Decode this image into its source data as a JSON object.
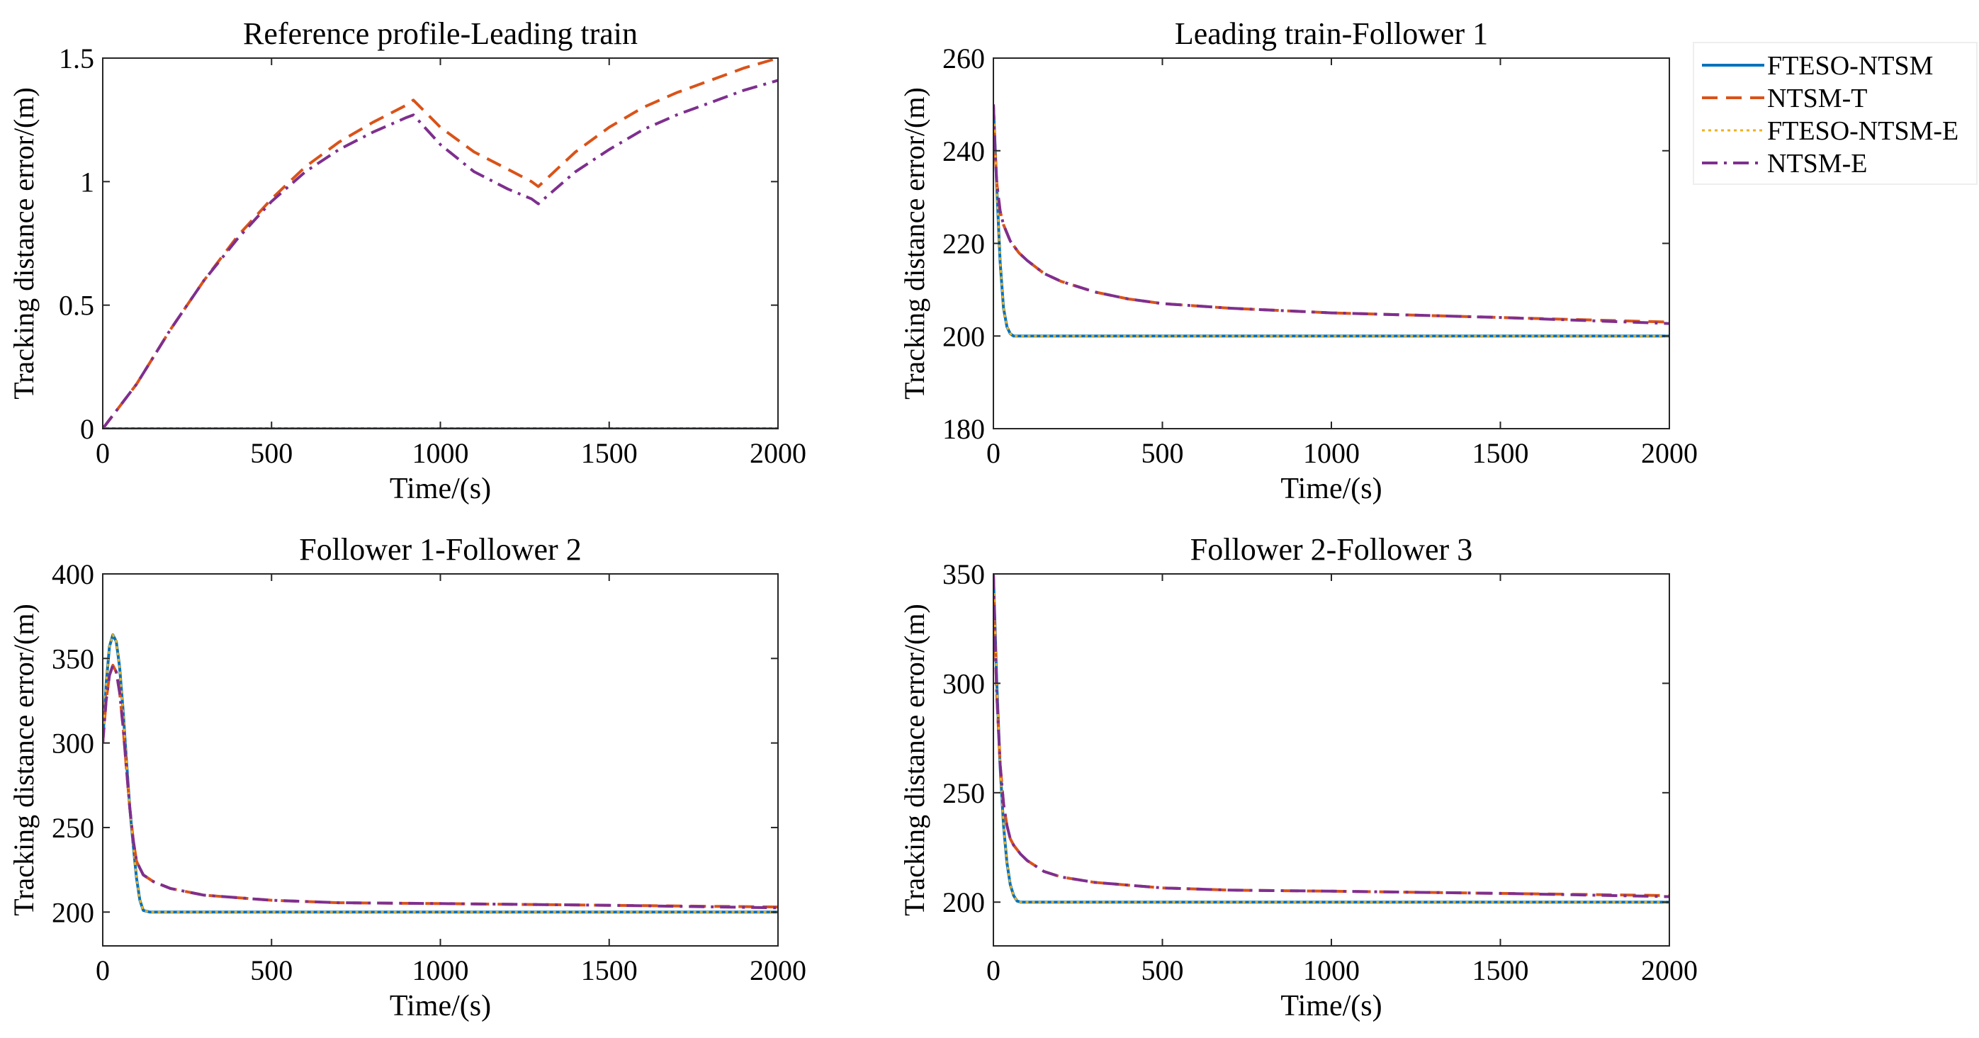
{
  "legend": {
    "placement": "top-right",
    "entries": [
      {
        "label": "FTESO-NTSM",
        "color": "#0072BD",
        "dash": "solid"
      },
      {
        "label": "NTSM-T",
        "color": "#D95319",
        "dash": "dashed"
      },
      {
        "label": "FTESO-NTSM-E",
        "color": "#EDB120",
        "dash": "dotted"
      },
      {
        "label": "NTSM-E",
        "color": "#7E2F8E",
        "dash": "dashdot"
      }
    ]
  },
  "chart_data": [
    {
      "type": "line",
      "title": "Reference profile-Leading train",
      "xlabel": "Time/(s)",
      "ylabel": "Tracking distance error/(m)",
      "xlim": [
        0,
        2000
      ],
      "ylim": [
        0,
        1.5
      ],
      "xticks": [
        0,
        500,
        1000,
        1500,
        2000
      ],
      "yticks": [
        0,
        0.5,
        1,
        1.5
      ],
      "yticklabels": [
        "0",
        "0.5",
        "1",
        "1.5"
      ],
      "series": [
        {
          "name": "FTESO-NTSM",
          "x": [
            0,
            2000
          ],
          "y": [
            0,
            0
          ]
        },
        {
          "name": "NTSM-T",
          "x": [
            0,
            100,
            200,
            300,
            400,
            500,
            600,
            700,
            800,
            900,
            920,
            1000,
            1100,
            1200,
            1270,
            1290,
            1400,
            1500,
            1600,
            1700,
            1800,
            1900,
            2000
          ],
          "y": [
            0,
            0.18,
            0.4,
            0.6,
            0.78,
            0.93,
            1.06,
            1.16,
            1.24,
            1.31,
            1.33,
            1.22,
            1.12,
            1.05,
            1.0,
            0.98,
            1.12,
            1.22,
            1.3,
            1.36,
            1.41,
            1.46,
            1.5
          ]
        },
        {
          "name": "FTESO-NTSM-E",
          "x": [
            0,
            2000
          ],
          "y": [
            0,
            0
          ]
        },
        {
          "name": "NTSM-E",
          "x": [
            0,
            100,
            200,
            300,
            400,
            500,
            600,
            700,
            800,
            900,
            920,
            1000,
            1100,
            1200,
            1270,
            1290,
            1400,
            1500,
            1600,
            1700,
            1800,
            1900,
            2000
          ],
          "y": [
            0,
            0.18,
            0.4,
            0.6,
            0.77,
            0.92,
            1.04,
            1.13,
            1.2,
            1.26,
            1.27,
            1.15,
            1.04,
            0.97,
            0.93,
            0.91,
            1.04,
            1.13,
            1.21,
            1.27,
            1.32,
            1.37,
            1.41
          ]
        }
      ]
    },
    {
      "type": "line",
      "title": "Leading train-Follower 1",
      "xlabel": "Time/(s)",
      "ylabel": "Tracking distance error/(m)",
      "xlim": [
        0,
        2000
      ],
      "ylim": [
        180,
        260
      ],
      "xticks": [
        0,
        500,
        1000,
        1500,
        2000
      ],
      "yticks": [
        180,
        200,
        220,
        240,
        260
      ],
      "yticklabels": [
        "180",
        "200",
        "220",
        "240",
        "260"
      ],
      "series": [
        {
          "name": "FTESO-NTSM",
          "x": [
            0,
            10,
            20,
            30,
            40,
            50,
            60,
            80,
            2000
          ],
          "y": [
            250,
            232,
            216,
            206,
            202,
            200.5,
            200,
            200,
            200
          ]
        },
        {
          "name": "NTSM-T",
          "x": [
            0,
            5,
            10,
            20,
            30,
            50,
            75,
            100,
            150,
            200,
            300,
            400,
            500,
            700,
            1000,
            1500,
            2000
          ],
          "y": [
            250,
            240,
            233,
            227,
            224,
            220.5,
            218,
            216.3,
            213.5,
            211.8,
            209.5,
            208,
            207,
            206,
            205,
            204,
            203
          ]
        },
        {
          "name": "FTESO-NTSM-E",
          "x": [
            0,
            10,
            20,
            30,
            40,
            50,
            60,
            80,
            2000
          ],
          "y": [
            250,
            232,
            216,
            206,
            202,
            200.5,
            200,
            200,
            200
          ]
        },
        {
          "name": "NTSM-E",
          "x": [
            0,
            5,
            10,
            20,
            30,
            50,
            75,
            100,
            150,
            200,
            300,
            400,
            500,
            700,
            1000,
            1500,
            2000
          ],
          "y": [
            250,
            240,
            233,
            227,
            224,
            220.5,
            218,
            216.3,
            213.5,
            211.8,
            209.5,
            208,
            207,
            206,
            205,
            204,
            202.7
          ]
        }
      ]
    },
    {
      "type": "line",
      "title": "Follower 1-Follower 2",
      "xlabel": "Time/(s)",
      "ylabel": "Tracking distance error/(m)",
      "xlim": [
        0,
        2000
      ],
      "ylim": [
        180,
        400
      ],
      "xticks": [
        0,
        500,
        1000,
        1500,
        2000
      ],
      "yticks": [
        200,
        250,
        300,
        350,
        400
      ],
      "yticklabels": [
        "200",
        "250",
        "300",
        "350",
        "400"
      ],
      "series": [
        {
          "name": "FTESO-NTSM",
          "x": [
            0,
            10,
            20,
            30,
            40,
            50,
            60,
            70,
            80,
            90,
            100,
            110,
            120,
            140,
            2000
          ],
          "y": [
            300,
            335,
            357,
            364,
            360,
            345,
            320,
            290,
            262,
            240,
            220,
            207,
            201,
            200,
            200
          ]
        },
        {
          "name": "NTSM-T",
          "x": [
            0,
            10,
            20,
            30,
            40,
            50,
            60,
            70,
            80,
            90,
            100,
            120,
            150,
            200,
            300,
            500,
            700,
            1000,
            1500,
            2000
          ],
          "y": [
            300,
            325,
            340,
            346,
            342,
            330,
            310,
            285,
            262,
            243,
            230,
            222,
            218,
            214,
            210,
            207,
            205.5,
            205,
            204,
            203
          ]
        },
        {
          "name": "FTESO-NTSM-E",
          "x": [
            0,
            10,
            20,
            30,
            40,
            50,
            60,
            70,
            80,
            90,
            100,
            110,
            120,
            140,
            2000
          ],
          "y": [
            300,
            335,
            357,
            364,
            360,
            345,
            320,
            290,
            262,
            240,
            220,
            207,
            201,
            200,
            200
          ]
        },
        {
          "name": "NTSM-E",
          "x": [
            0,
            10,
            20,
            30,
            40,
            50,
            60,
            70,
            80,
            90,
            100,
            120,
            150,
            200,
            300,
            500,
            700,
            1000,
            1500,
            2000
          ],
          "y": [
            300,
            325,
            340,
            346,
            342,
            330,
            310,
            285,
            262,
            243,
            230,
            222,
            218,
            214,
            210,
            207,
            205.5,
            205,
            204,
            202.5
          ]
        }
      ]
    },
    {
      "type": "line",
      "title": "Follower 2-Follower 3",
      "xlabel": "Time/(s)",
      "ylabel": "Tracking distance error/(m)",
      "xlim": [
        0,
        2000
      ],
      "ylim": [
        180,
        350
      ],
      "xticks": [
        0,
        500,
        1000,
        1500,
        2000
      ],
      "yticks": [
        200,
        250,
        300,
        350
      ],
      "yticklabels": [
        "200",
        "250",
        "300",
        "350"
      ],
      "series": [
        {
          "name": "FTESO-NTSM",
          "x": [
            0,
            10,
            20,
            30,
            40,
            50,
            60,
            70,
            80,
            2000
          ],
          "y": [
            350,
            300,
            262,
            235,
            218,
            208,
            203,
            200.5,
            200,
            200
          ]
        },
        {
          "name": "NTSM-T",
          "x": [
            0,
            5,
            10,
            20,
            30,
            40,
            50,
            60,
            80,
            100,
            150,
            200,
            300,
            500,
            700,
            1000,
            1500,
            2000
          ],
          "y": [
            350,
            320,
            295,
            263,
            245,
            235,
            229,
            226,
            222,
            219,
            214,
            211.5,
            209,
            206.5,
            205.5,
            205,
            204,
            203
          ]
        },
        {
          "name": "FTESO-NTSM-E",
          "x": [
            0,
            10,
            20,
            30,
            40,
            50,
            60,
            70,
            80,
            2000
          ],
          "y": [
            350,
            300,
            262,
            235,
            218,
            208,
            203,
            200.5,
            200,
            200
          ]
        },
        {
          "name": "NTSM-E",
          "x": [
            0,
            5,
            10,
            20,
            30,
            40,
            50,
            60,
            80,
            100,
            150,
            200,
            300,
            500,
            700,
            1000,
            1500,
            2000
          ],
          "y": [
            350,
            320,
            295,
            263,
            245,
            235,
            229,
            226,
            222,
            219,
            214,
            211.5,
            209,
            206.5,
            205.5,
            205,
            204,
            202.5
          ]
        }
      ]
    }
  ]
}
